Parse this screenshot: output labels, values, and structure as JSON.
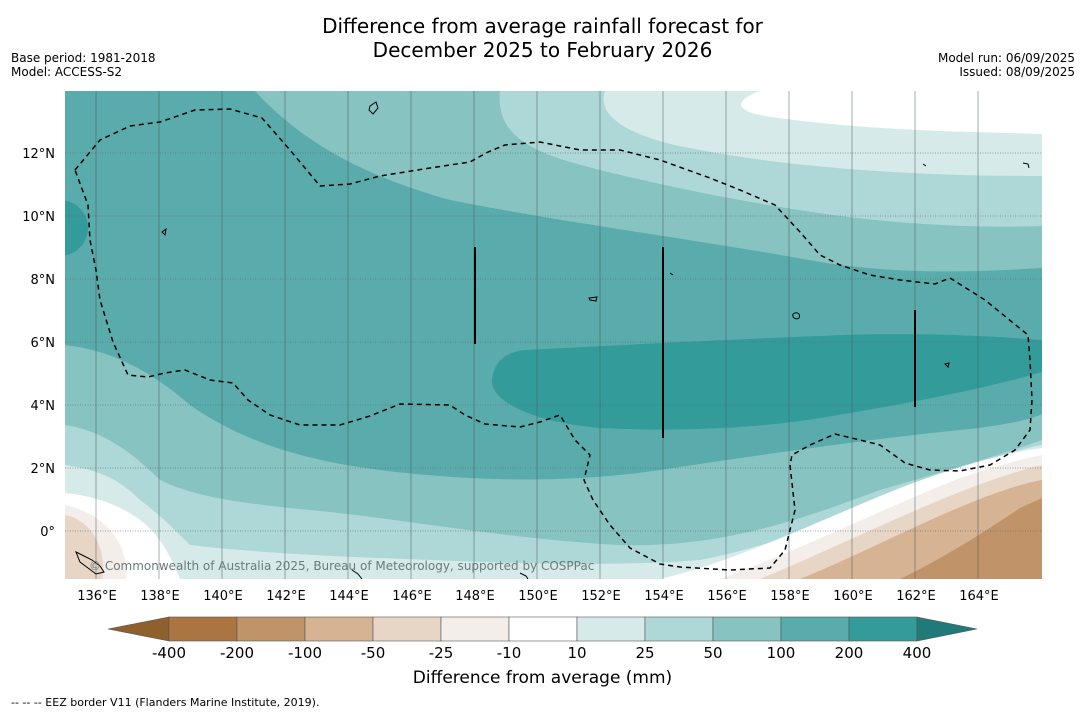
{
  "title_line1": "Difference from average rainfall forecast for",
  "title_line2": "December 2025 to February 2026",
  "meta_left": {
    "base_period": "Base period: 1981-2018",
    "model": "Model: ACCESS-S2"
  },
  "meta_right": {
    "model_run": "Model run: 06/09/2025",
    "issued": "Issued: 08/09/2025"
  },
  "map": {
    "lat_labels": [
      "12°N",
      "10°N",
      "8°N",
      "6°N",
      "4°N",
      "2°N",
      "0°"
    ],
    "lon_labels": [
      "136°E",
      "138°E",
      "140°E",
      "142°E",
      "144°E",
      "146°E",
      "148°E",
      "150°E",
      "152°E",
      "154°E",
      "156°E",
      "158°E",
      "160°E",
      "162°E",
      "164°E"
    ],
    "copyright": "© Commonwealth of Australia 2025, Bureau of Meteorology, supported by COSPPac"
  },
  "colorbar": {
    "labels": [
      "-400",
      "-200",
      "-100",
      "-50",
      "-25",
      "-10",
      "10",
      "25",
      "50",
      "100",
      "200",
      "400"
    ],
    "colors": {
      "lt_-400": "#8f5f2c",
      "-400_-200": "#ab7541",
      "-200_-100": "#c09369",
      "-100_-50": "#d5b393",
      "-50_-25": "#e7d6c6",
      "-25_-10": "#f3eeea",
      "-10_10": "#ffffff",
      "10_25": "#d7eaea",
      "25_50": "#aed8d7",
      "50_100": "#86c3c1",
      "100_200": "#5aabab",
      "200_400": "#339c9a",
      "gt_400": "#1f7a78"
    },
    "title": "Difference from average (mm)"
  },
  "footnote": "--  --  -- EEZ border V11 (Flanders Marine Institute, 2019)."
}
